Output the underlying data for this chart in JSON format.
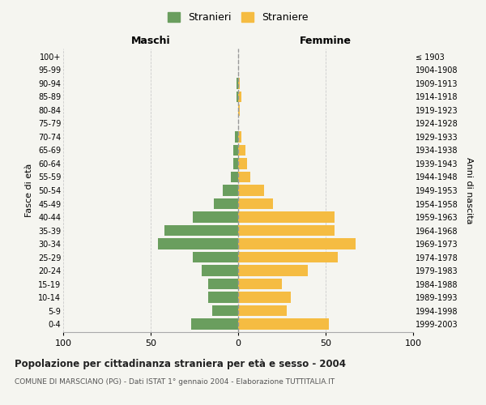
{
  "age_groups": [
    "0-4",
    "5-9",
    "10-14",
    "15-19",
    "20-24",
    "25-29",
    "30-34",
    "35-39",
    "40-44",
    "45-49",
    "50-54",
    "55-59",
    "60-64",
    "65-69",
    "70-74",
    "75-79",
    "80-84",
    "85-89",
    "90-94",
    "95-99",
    "100+"
  ],
  "birth_years": [
    "1999-2003",
    "1994-1998",
    "1989-1993",
    "1984-1988",
    "1979-1983",
    "1974-1978",
    "1969-1973",
    "1964-1968",
    "1959-1963",
    "1954-1958",
    "1949-1953",
    "1944-1948",
    "1939-1943",
    "1934-1938",
    "1929-1933",
    "1924-1928",
    "1919-1923",
    "1914-1918",
    "1909-1913",
    "1904-1908",
    "≤ 1903"
  ],
  "maschi": [
    27,
    15,
    17,
    17,
    21,
    26,
    46,
    42,
    26,
    14,
    9,
    4,
    3,
    3,
    2,
    0,
    0,
    1,
    1,
    0,
    0
  ],
  "femmine": [
    52,
    28,
    30,
    25,
    40,
    57,
    67,
    55,
    55,
    20,
    15,
    7,
    5,
    4,
    2,
    0,
    1,
    2,
    1,
    0,
    0
  ],
  "maschi_color": "#6a9e5e",
  "femmine_color": "#f5bc42",
  "background_color": "#f5f5f0",
  "grid_color": "#cccccc",
  "center_line_color": "#999999",
  "xlim": 100,
  "title": "Popolazione per cittadinanza straniera per età e sesso - 2004",
  "subtitle": "COMUNE DI MARSCIANO (PG) - Dati ISTAT 1° gennaio 2004 - Elaborazione TUTTITALIA.IT",
  "ylabel_left": "Fasce di età",
  "ylabel_right": "Anni di nascita",
  "legend_maschi": "Stranieri",
  "legend_femmine": "Straniere",
  "maschi_label": "Maschi",
  "femmine_label": "Femmine"
}
